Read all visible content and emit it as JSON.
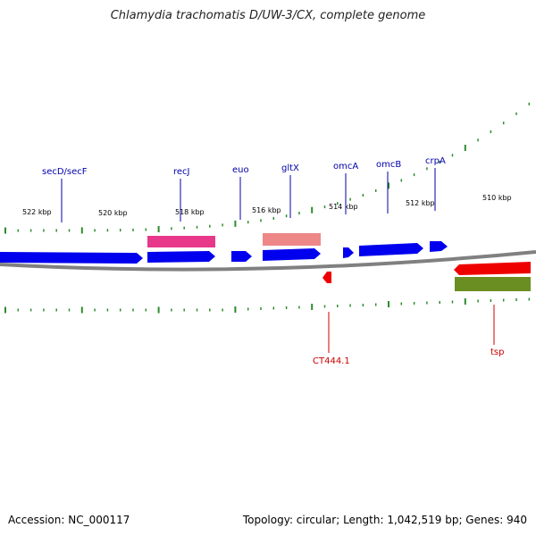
{
  "title": "Chlamydia trachomatis D/UW-3/CX, complete genome",
  "footer": {
    "accession": "Accession: NC_000117",
    "summary": "Topology: circular; Length: 1,042,519 bp; Genes: 940"
  },
  "colors": {
    "background": "#ffffff",
    "backbone": "#808080",
    "tick": "#2e8b2e",
    "forward_gene": "#0000ee",
    "reverse_gene": "#ee0000",
    "forward_label": "#0000aa",
    "reverse_label": "#cc0000",
    "pink_feature": "#e8388a",
    "salmon_feature": "#ee8888",
    "olive_feature": "#6b8e23"
  },
  "scale_labels": [
    "522 kbp",
    "520 kbp",
    "518 kbp",
    "516 kbp",
    "514 kbp",
    "512 kbp",
    "510 kbp"
  ],
  "genes_top": [
    {
      "name": "secD/secF"
    },
    {
      "name": "recJ"
    },
    {
      "name": "euo"
    },
    {
      "name": "gltX"
    },
    {
      "name": "omcA"
    },
    {
      "name": "omcB"
    },
    {
      "name": "crpA"
    }
  ],
  "genes_bottom": [
    {
      "name": "CT444.1"
    },
    {
      "name": "tsp"
    }
  ]
}
